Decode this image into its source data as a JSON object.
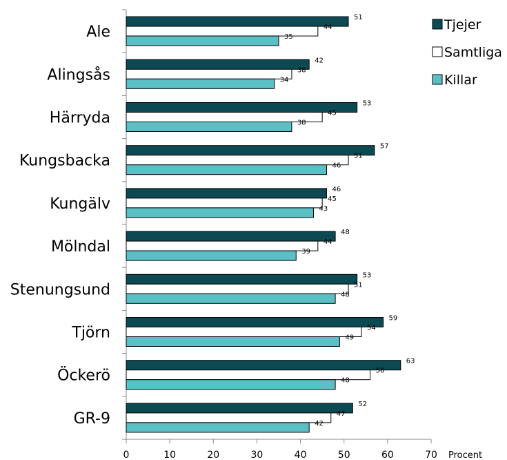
{
  "chart_data": {
    "type": "bar",
    "orientation": "horizontal",
    "categories": [
      "Ale",
      "Alingsås",
      "Härryda",
      "Kungsbacka",
      "Kungälv",
      "Mölndal",
      "Stenungsund",
      "Tjörn",
      "Öckerö",
      "GR-9"
    ],
    "series": [
      {
        "name": "Tjejer",
        "color": "#0b4a53",
        "values": [
          51,
          42,
          53,
          57,
          46,
          48,
          53,
          59,
          63,
          52
        ]
      },
      {
        "name": "Samtliga",
        "color": "#ffffff",
        "values": [
          44,
          38,
          45,
          51,
          45,
          44,
          51,
          54,
          56,
          47
        ]
      },
      {
        "name": "Killar",
        "color": "#5bbfc6",
        "values": [
          35,
          34,
          38,
          46,
          43,
          39,
          48,
          49,
          48,
          42
        ]
      }
    ],
    "xlim": [
      0,
      70
    ],
    "xticks": [
      "0",
      "10",
      "20",
      "30",
      "40",
      "50",
      "60",
      "70"
    ],
    "xlabel": "Procent",
    "legend_position": "top-right",
    "grid": false,
    "bar_outline_color": "#000000"
  }
}
